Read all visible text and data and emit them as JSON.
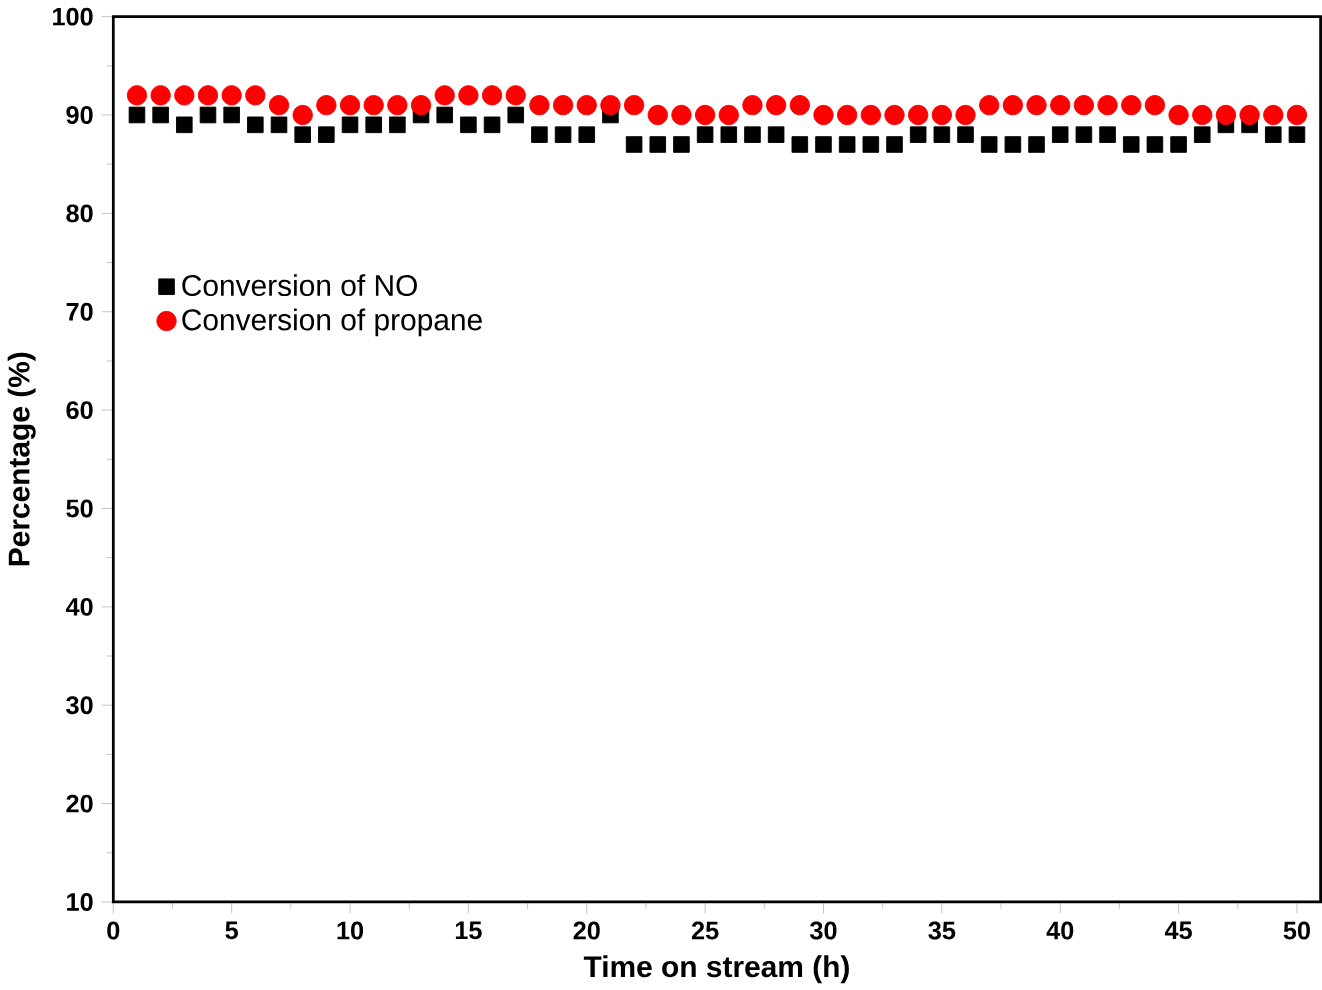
{
  "chart_data": {
    "type": "scatter",
    "xlabel": "Time on stream (h)",
    "ylabel": "Percentage (%)",
    "x": [
      1,
      2,
      3,
      4,
      5,
      6,
      7,
      8,
      9,
      10,
      11,
      12,
      13,
      14,
      15,
      16,
      17,
      18,
      19,
      20,
      21,
      22,
      23,
      24,
      25,
      26,
      27,
      28,
      29,
      30,
      31,
      32,
      33,
      34,
      35,
      36,
      37,
      38,
      39,
      40,
      41,
      42,
      43,
      44,
      45,
      46,
      47,
      48,
      49,
      50
    ],
    "series": [
      {
        "name": "Conversion of NO",
        "color": "#000000",
        "marker": "square",
        "values": [
          90,
          90,
          89,
          90,
          90,
          89,
          89,
          88,
          88,
          89,
          89,
          89,
          90,
          90,
          89,
          89,
          90,
          88,
          88,
          88,
          90,
          87,
          87,
          87,
          88,
          88,
          88,
          88,
          87,
          87,
          87,
          87,
          87,
          88,
          88,
          88,
          87,
          87,
          87,
          88,
          88,
          88,
          87,
          87,
          87,
          88,
          89,
          89,
          88,
          88
        ]
      },
      {
        "name": "Conversion of propane",
        "color": "#ff0000",
        "marker": "circle",
        "values": [
          92,
          92,
          92,
          92,
          92,
          92,
          91,
          90,
          91,
          91,
          91,
          91,
          91,
          92,
          92,
          92,
          92,
          91,
          91,
          91,
          91,
          91,
          90,
          90,
          90,
          90,
          91,
          91,
          91,
          90,
          90,
          90,
          90,
          90,
          90,
          90,
          91,
          91,
          91,
          91,
          91,
          91,
          91,
          91,
          90,
          90,
          90,
          90,
          90,
          90
        ]
      }
    ],
    "xlim": [
      0,
      51
    ],
    "ylim": [
      10,
      100
    ],
    "xticks": [
      0,
      5,
      10,
      15,
      20,
      25,
      30,
      35,
      40,
      45,
      50
    ],
    "yticks": [
      10,
      20,
      30,
      40,
      50,
      60,
      70,
      80,
      90,
      100
    ],
    "legend": "left",
    "grid": false
  }
}
